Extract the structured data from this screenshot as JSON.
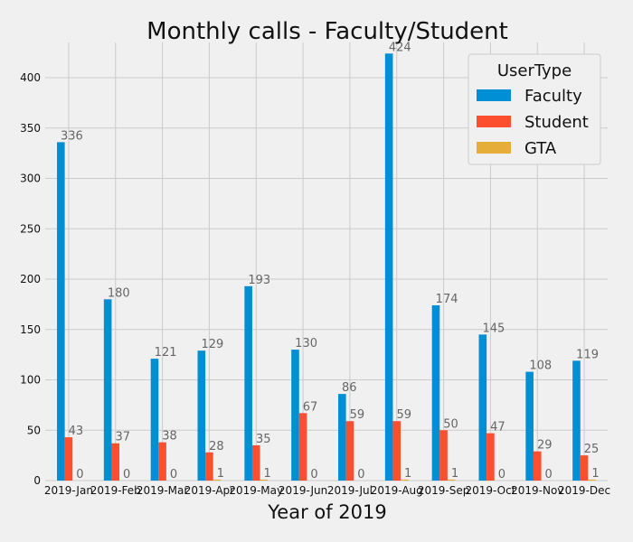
{
  "chart_data": {
    "type": "bar",
    "title": "Monthly calls - Faculty/Student",
    "xlabel": "Year of 2019",
    "ylabel": "",
    "ylim": [
      0,
      435
    ],
    "yticks": [
      0,
      50,
      100,
      150,
      200,
      250,
      300,
      350,
      400
    ],
    "grid": true,
    "legend": {
      "title": "UserType",
      "position": "top-right"
    },
    "categories": [
      "2019-Jan",
      "2019-Feb",
      "2019-Mar",
      "2019-Apr",
      "2019-May",
      "2019-Jun",
      "2019-Jul",
      "2019-Aug",
      "2019-Sep",
      "2019-Oct",
      "2019-Nov",
      "2019-Dec"
    ],
    "series": [
      {
        "name": "Faculty",
        "color": "#008fd5",
        "values": [
          336,
          180,
          121,
          129,
          193,
          130,
          86,
          424,
          174,
          145,
          108,
          119
        ]
      },
      {
        "name": "Student",
        "color": "#fc4f30",
        "values": [
          43,
          37,
          38,
          28,
          35,
          67,
          59,
          59,
          50,
          47,
          29,
          25
        ]
      },
      {
        "name": "GTA",
        "color": "#e5ae38",
        "values": [
          0,
          0,
          0,
          1,
          1,
          0,
          0,
          1,
          1,
          0,
          0,
          1
        ]
      }
    ]
  }
}
